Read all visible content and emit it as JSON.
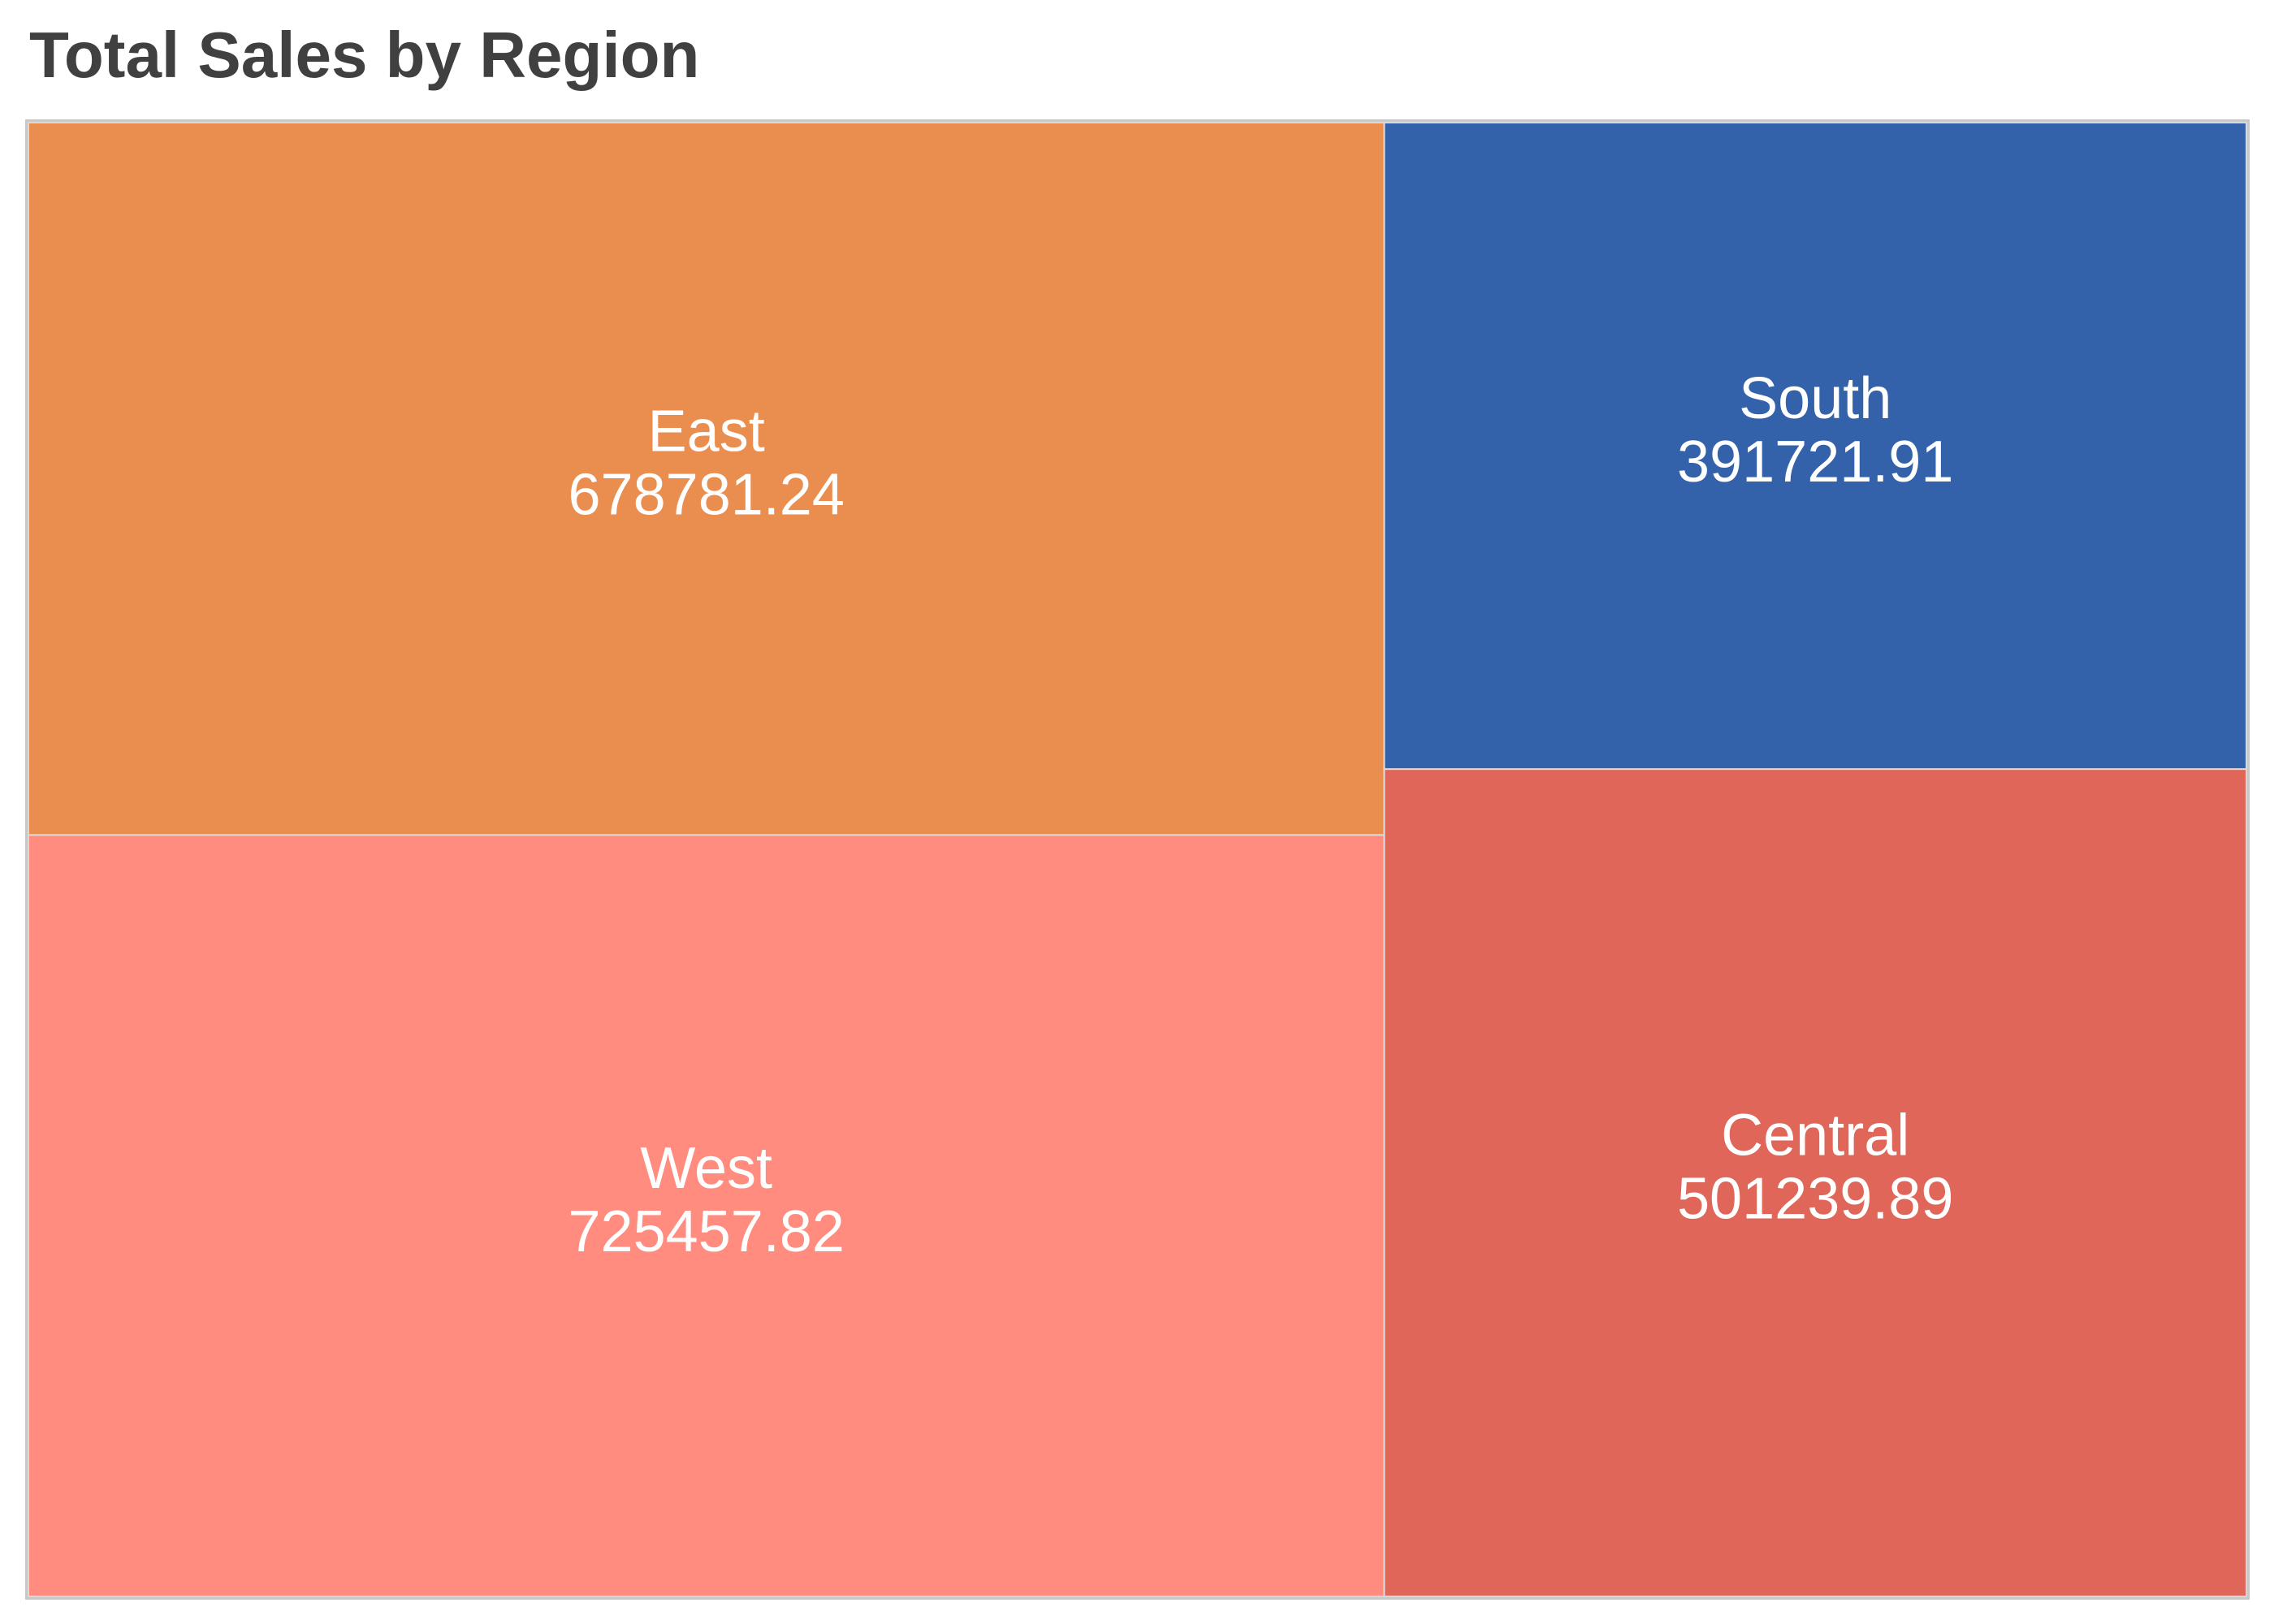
{
  "chart_data": {
    "type": "treemap",
    "title": "Total Sales by Region",
    "categories": [
      "West",
      "East",
      "Central",
      "South"
    ],
    "values": [
      725457.82,
      678781.24,
      501239.89,
      391721.91
    ],
    "value_labels": [
      "725457.82",
      "678781.24",
      "501239.89",
      "391721.91"
    ],
    "colors": [
      "#FF8C7E",
      "#EA8E50",
      "#DF6658",
      "#3362AA"
    ],
    "label_color": "#FFFFFF"
  }
}
